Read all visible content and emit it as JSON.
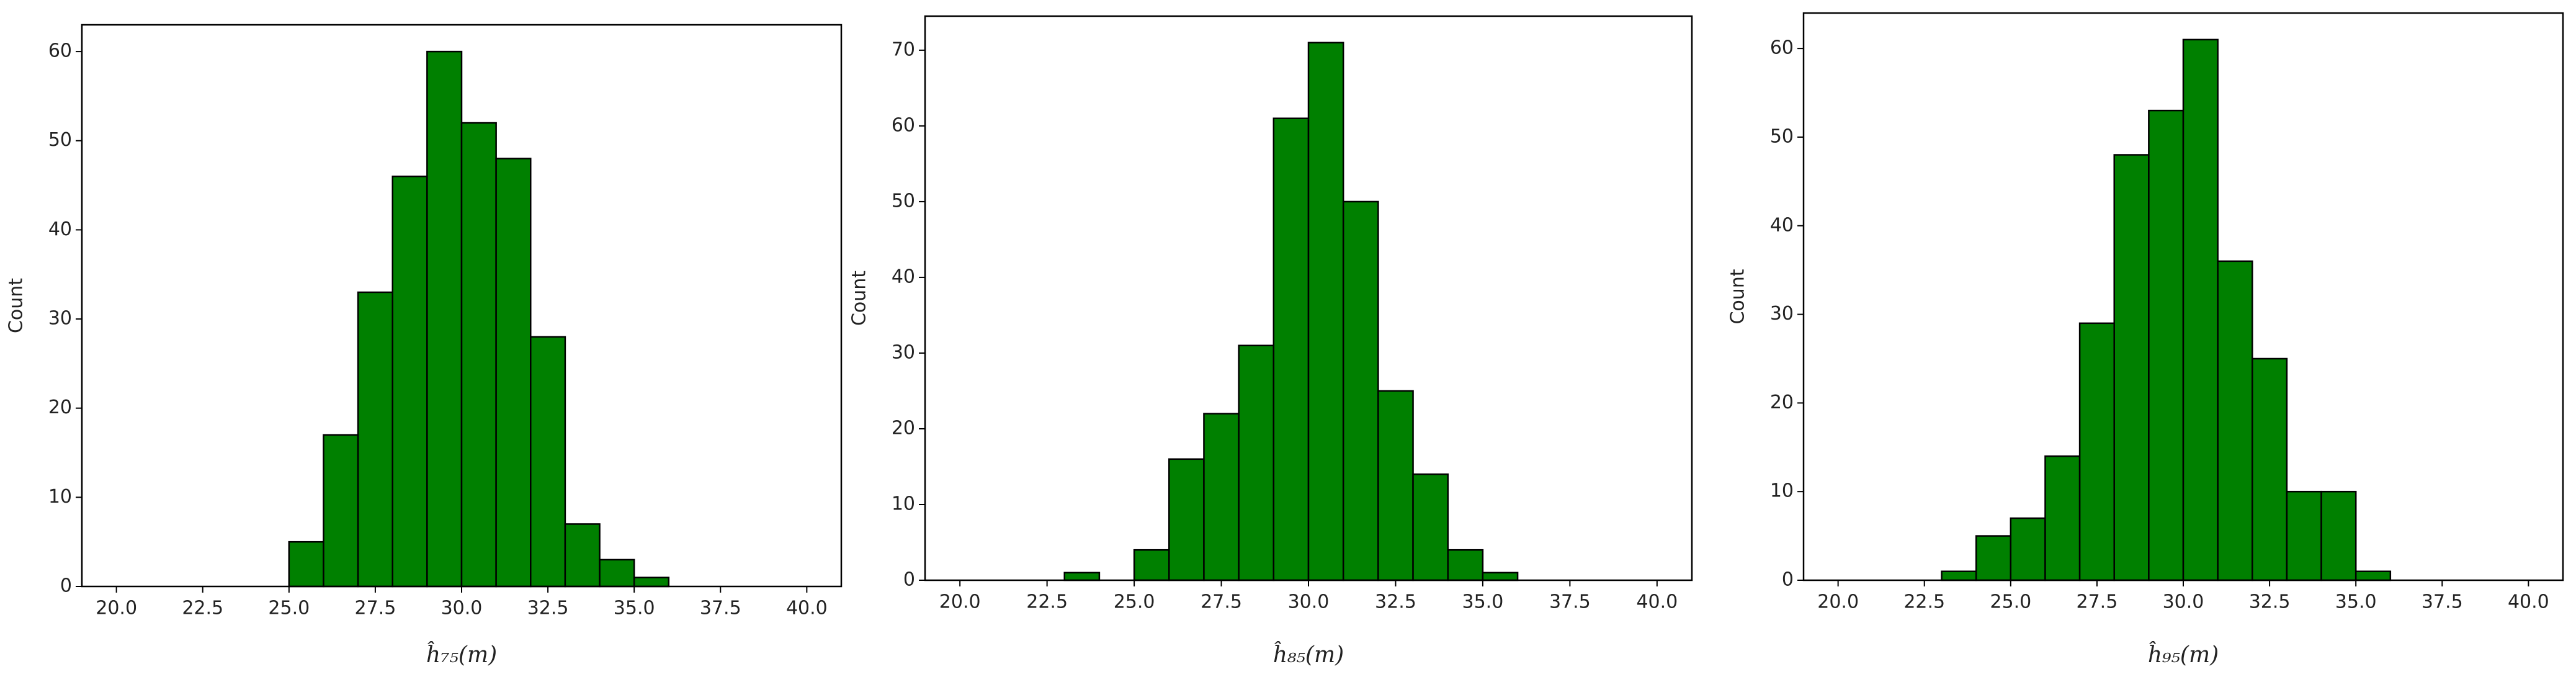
{
  "chart_data": [
    {
      "type": "histogram",
      "xlabel": "ĥ₇₅(m)",
      "ylabel": "Count",
      "color": "#008000",
      "edgecolor": "#000000",
      "bins": [
        20,
        21,
        22,
        23,
        24,
        25,
        26,
        27,
        28,
        29,
        30,
        31,
        32,
        33,
        34,
        35,
        36,
        37,
        38,
        39,
        40
      ],
      "values": [
        0,
        0,
        0,
        0,
        0,
        5,
        17,
        33,
        46,
        60,
        52,
        48,
        28,
        7,
        3,
        1,
        0,
        0,
        0,
        0
      ],
      "xlim": [
        19,
        41
      ],
      "ylim": [
        0,
        63
      ],
      "xticks": [
        {
          "value": 20,
          "label": "20.0"
        },
        {
          "value": 22.5,
          "label": "22.5"
        },
        {
          "value": 25,
          "label": "25.0"
        },
        {
          "value": 27.5,
          "label": "27.5"
        },
        {
          "value": 30,
          "label": "30.0"
        },
        {
          "value": 32.5,
          "label": "32.5"
        },
        {
          "value": 35,
          "label": "35.0"
        },
        {
          "value": 37.5,
          "label": "37.5"
        },
        {
          "value": 40,
          "label": "40.0"
        }
      ],
      "yticks": [
        0,
        10,
        20,
        30,
        40,
        50,
        60
      ]
    },
    {
      "type": "histogram",
      "xlabel": "ĥ₈₅(m)",
      "ylabel": "Count",
      "color": "#008000",
      "edgecolor": "#000000",
      "bins": [
        20,
        21,
        22,
        23,
        24,
        25,
        26,
        27,
        28,
        29,
        30,
        31,
        32,
        33,
        34,
        35,
        36,
        37,
        38,
        39,
        40
      ],
      "values": [
        0,
        0,
        0,
        1,
        0,
        4,
        16,
        22,
        31,
        61,
        71,
        50,
        25,
        14,
        4,
        1,
        0,
        0,
        0,
        0
      ],
      "xlim": [
        19,
        41
      ],
      "ylim": [
        0,
        74.5
      ],
      "xticks": [
        {
          "value": 20,
          "label": "20.0"
        },
        {
          "value": 22.5,
          "label": "22.5"
        },
        {
          "value": 25,
          "label": "25.0"
        },
        {
          "value": 27.5,
          "label": "27.5"
        },
        {
          "value": 30,
          "label": "30.0"
        },
        {
          "value": 32.5,
          "label": "32.5"
        },
        {
          "value": 35,
          "label": "35.0"
        },
        {
          "value": 37.5,
          "label": "37.5"
        },
        {
          "value": 40,
          "label": "40.0"
        }
      ],
      "yticks": [
        0,
        10,
        20,
        30,
        40,
        50,
        60,
        70
      ]
    },
    {
      "type": "histogram",
      "xlabel": "ĥ₉₅(m)",
      "ylabel": "Count",
      "color": "#008000",
      "edgecolor": "#000000",
      "bins": [
        20,
        21,
        22,
        23,
        24,
        25,
        26,
        27,
        28,
        29,
        30,
        31,
        32,
        33,
        34,
        35,
        36,
        37,
        38,
        39,
        40
      ],
      "values": [
        0,
        0,
        0,
        1,
        5,
        7,
        14,
        29,
        48,
        53,
        61,
        36,
        25,
        10,
        10,
        1,
        0,
        0,
        0,
        0
      ],
      "xlim": [
        19,
        41
      ],
      "ylim": [
        0,
        64
      ],
      "xticks": [
        {
          "value": 20,
          "label": "20.0"
        },
        {
          "value": 22.5,
          "label": "22.5"
        },
        {
          "value": 25,
          "label": "25.0"
        },
        {
          "value": 27.5,
          "label": "27.5"
        },
        {
          "value": 30,
          "label": "30.0"
        },
        {
          "value": 32.5,
          "label": "32.5"
        },
        {
          "value": 35,
          "label": "35.0"
        },
        {
          "value": 37.5,
          "label": "37.5"
        },
        {
          "value": 40,
          "label": "40.0"
        }
      ],
      "yticks": [
        0,
        10,
        20,
        30,
        40,
        50,
        60
      ]
    }
  ]
}
